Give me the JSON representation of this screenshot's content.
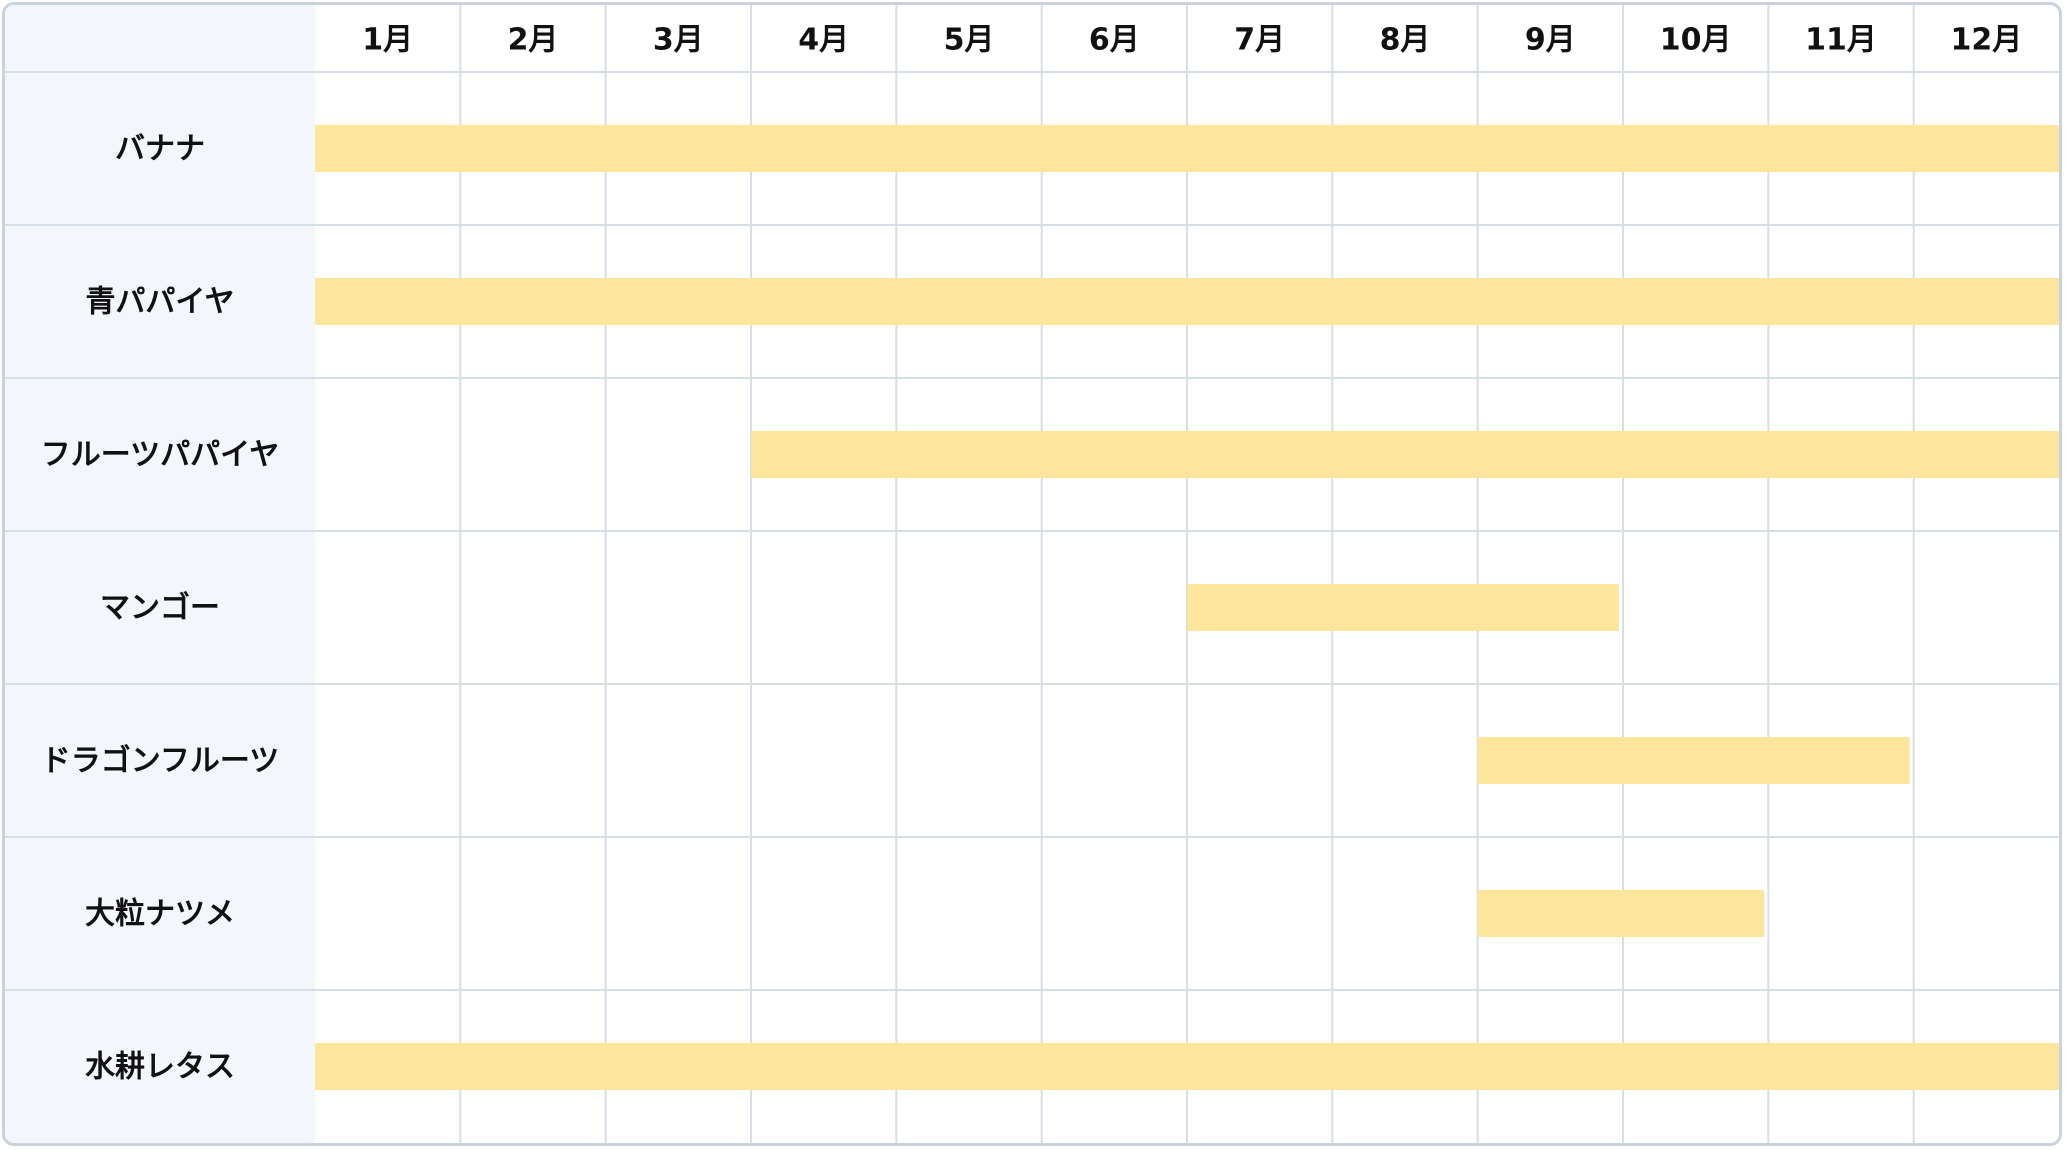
{
  "chart_data": {
    "type": "bar",
    "subtype": "gantt",
    "months": [
      "1月",
      "2月",
      "3月",
      "4月",
      "5月",
      "6月",
      "7月",
      "8月",
      "9月",
      "10月",
      "11月",
      "12月"
    ],
    "rows": [
      {
        "label": "バナナ",
        "start_month": 1,
        "end_month": 12
      },
      {
        "label": "青パパイヤ",
        "start_month": 1,
        "end_month": 12
      },
      {
        "label": "フルーツパパイヤ",
        "start_month": 4,
        "end_month": 12
      },
      {
        "label": "マンゴー",
        "start_month": 7,
        "end_month": 9
      },
      {
        "label": "ドラゴンフルーツ",
        "start_month": 9,
        "end_month": 11
      },
      {
        "label": "大粒ナツメ",
        "start_month": 9,
        "end_month": 10
      },
      {
        "label": "水耕レタス",
        "start_month": 1,
        "end_month": 12
      }
    ],
    "grid": true,
    "colors": {
      "bar": "#fde59c",
      "label_column_bg": "#f3f6fb",
      "grid_line": "#d6dee7",
      "border": "#c8d3df",
      "text": "#111111"
    }
  }
}
